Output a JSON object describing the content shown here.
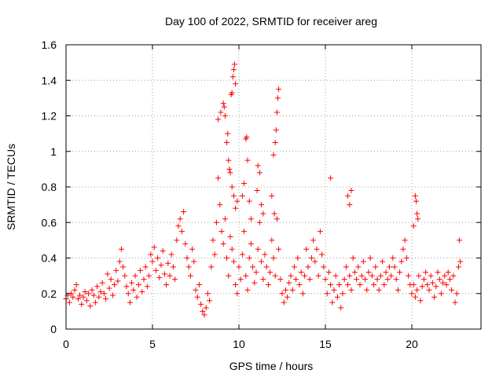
{
  "chart_data": {
    "type": "scatter",
    "title": "Day 100 of 2022, SRMTID for receiver areg",
    "xlabel": "GPS time / hours",
    "ylabel": "SRMTID / TECUs",
    "xlim": [
      0,
      24
    ],
    "ylim": [
      0,
      1.6
    ],
    "xticks": [
      0,
      5,
      10,
      15,
      20
    ],
    "xtick_labels": [
      "0",
      "5",
      "10",
      "15",
      "20"
    ],
    "yticks": [
      0,
      0.2,
      0.4,
      0.6,
      0.8,
      1.0,
      1.2,
      1.4,
      1.6
    ],
    "ytick_labels": [
      "0",
      "0.2",
      "0.4",
      "0.6",
      "0.8",
      "1",
      "1.2",
      "1.4",
      "1.6"
    ],
    "grid": true,
    "marker": "+",
    "color": "#ff0000",
    "series": [
      {
        "name": "SRMTID",
        "points": [
          [
            0.0,
            0.17
          ],
          [
            0.1,
            0.19
          ],
          [
            0.2,
            0.15
          ],
          [
            0.3,
            0.2
          ],
          [
            0.4,
            0.18
          ],
          [
            0.5,
            0.22
          ],
          [
            0.6,
            0.25
          ],
          [
            0.7,
            0.17
          ],
          [
            0.8,
            0.19
          ],
          [
            0.9,
            0.14
          ],
          [
            1.0,
            0.18
          ],
          [
            1.1,
            0.21
          ],
          [
            1.2,
            0.16
          ],
          [
            1.3,
            0.2
          ],
          [
            1.4,
            0.13
          ],
          [
            1.5,
            0.22
          ],
          [
            1.6,
            0.19
          ],
          [
            1.7,
            0.15
          ],
          [
            1.8,
            0.24
          ],
          [
            1.9,
            0.18
          ],
          [
            2.0,
            0.21
          ],
          [
            2.1,
            0.26
          ],
          [
            2.2,
            0.2
          ],
          [
            2.3,
            0.17
          ],
          [
            2.4,
            0.31
          ],
          [
            2.5,
            0.23
          ],
          [
            2.6,
            0.28
          ],
          [
            2.7,
            0.19
          ],
          [
            2.8,
            0.25
          ],
          [
            2.9,
            0.33
          ],
          [
            3.0,
            0.27
          ],
          [
            3.1,
            0.38
          ],
          [
            3.2,
            0.45
          ],
          [
            3.3,
            0.35
          ],
          [
            3.4,
            0.3
          ],
          [
            3.5,
            0.24
          ],
          [
            3.6,
            0.2
          ],
          [
            3.7,
            0.15
          ],
          [
            3.8,
            0.26
          ],
          [
            3.9,
            0.22
          ],
          [
            4.0,
            0.3
          ],
          [
            4.1,
            0.18
          ],
          [
            4.2,
            0.25
          ],
          [
            4.3,
            0.33
          ],
          [
            4.4,
            0.21
          ],
          [
            4.5,
            0.28
          ],
          [
            4.6,
            0.35
          ],
          [
            4.7,
            0.24
          ],
          [
            4.8,
            0.3
          ],
          [
            4.9,
            0.42
          ],
          [
            5.0,
            0.38
          ],
          [
            5.1,
            0.46
          ],
          [
            5.2,
            0.33
          ],
          [
            5.3,
            0.4
          ],
          [
            5.4,
            0.29
          ],
          [
            5.5,
            0.36
          ],
          [
            5.6,
            0.44
          ],
          [
            5.7,
            0.31
          ],
          [
            5.8,
            0.25
          ],
          [
            5.9,
            0.37
          ],
          [
            6.0,
            0.3
          ],
          [
            6.1,
            0.42
          ],
          [
            6.2,
            0.35
          ],
          [
            6.3,
            0.28
          ],
          [
            6.4,
            0.5
          ],
          [
            6.5,
            0.58
          ],
          [
            6.6,
            0.62
          ],
          [
            6.7,
            0.55
          ],
          [
            6.8,
            0.66
          ],
          [
            6.9,
            0.48
          ],
          [
            7.0,
            0.4
          ],
          [
            7.1,
            0.35
          ],
          [
            7.2,
            0.3
          ],
          [
            7.3,
            0.45
          ],
          [
            7.4,
            0.38
          ],
          [
            7.5,
            0.22
          ],
          [
            7.6,
            0.18
          ],
          [
            7.7,
            0.25
          ],
          [
            7.8,
            0.14
          ],
          [
            7.9,
            0.1
          ],
          [
            8.0,
            0.08
          ],
          [
            8.1,
            0.12
          ],
          [
            8.2,
            0.2
          ],
          [
            8.3,
            0.16
          ],
          [
            8.4,
            0.35
          ],
          [
            8.5,
            0.5
          ],
          [
            8.6,
            0.42
          ],
          [
            8.7,
            0.6
          ],
          [
            8.8,
            0.85
          ],
          [
            8.9,
            0.7
          ],
          [
            9.0,
            0.55
          ],
          [
            9.1,
            0.48
          ],
          [
            9.2,
            0.62
          ],
          [
            9.3,
            0.4
          ],
          [
            9.4,
            0.3
          ],
          [
            9.5,
            0.52
          ],
          [
            9.6,
            0.45
          ],
          [
            9.7,
            0.38
          ],
          [
            9.8,
            0.25
          ],
          [
            9.9,
            0.2
          ],
          [
            10.0,
            0.35
          ],
          [
            10.1,
            0.28
          ],
          [
            10.2,
            0.42
          ],
          [
            10.3,
            0.55
          ],
          [
            10.4,
            0.3
          ],
          [
            10.5,
            0.22
          ],
          [
            10.6,
            0.4
          ],
          [
            10.7,
            0.48
          ],
          [
            10.8,
            0.35
          ],
          [
            10.9,
            0.26
          ],
          [
            11.0,
            0.32
          ],
          [
            11.1,
            0.45
          ],
          [
            11.2,
            0.6
          ],
          [
            11.3,
            0.38
          ],
          [
            11.4,
            0.28
          ],
          [
            11.5,
            0.42
          ],
          [
            11.6,
            0.35
          ],
          [
            11.7,
            0.25
          ],
          [
            11.8,
            0.32
          ],
          [
            11.9,
            0.5
          ],
          [
            12.0,
            0.4
          ],
          [
            12.1,
            0.3
          ],
          [
            12.2,
            0.62
          ],
          [
            12.3,
            0.45
          ],
          [
            12.4,
            0.28
          ],
          [
            12.5,
            0.2
          ],
          [
            12.6,
            0.15
          ],
          [
            12.7,
            0.22
          ],
          [
            12.8,
            0.18
          ],
          [
            12.9,
            0.26
          ],
          [
            13.0,
            0.3
          ],
          [
            13.1,
            0.22
          ],
          [
            13.2,
            0.35
          ],
          [
            13.3,
            0.28
          ],
          [
            13.4,
            0.4
          ],
          [
            13.5,
            0.25
          ],
          [
            13.6,
            0.32
          ],
          [
            13.7,
            0.2
          ],
          [
            13.8,
            0.3
          ],
          [
            13.9,
            0.45
          ],
          [
            14.0,
            0.35
          ],
          [
            14.1,
            0.28
          ],
          [
            14.2,
            0.4
          ],
          [
            14.3,
            0.5
          ],
          [
            14.4,
            0.38
          ],
          [
            14.5,
            0.45
          ],
          [
            14.6,
            0.3
          ],
          [
            14.7,
            0.55
          ],
          [
            14.8,
            0.42
          ],
          [
            14.9,
            0.35
          ],
          [
            15.0,
            0.28
          ],
          [
            15.1,
            0.2
          ],
          [
            15.2,
            0.32
          ],
          [
            15.3,
            0.25
          ],
          [
            15.4,
            0.15
          ],
          [
            15.5,
            0.22
          ],
          [
            15.6,
            0.3
          ],
          [
            15.7,
            0.18
          ],
          [
            15.8,
            0.25
          ],
          [
            15.9,
            0.12
          ],
          [
            16.0,
            0.2
          ],
          [
            16.1,
            0.28
          ],
          [
            16.2,
            0.35
          ],
          [
            16.3,
            0.25
          ],
          [
            16.4,
            0.3
          ],
          [
            16.5,
            0.22
          ],
          [
            16.6,
            0.4
          ],
          [
            16.7,
            0.32
          ],
          [
            16.8,
            0.28
          ],
          [
            16.9,
            0.35
          ],
          [
            17.0,
            0.25
          ],
          [
            17.1,
            0.3
          ],
          [
            17.2,
            0.38
          ],
          [
            17.3,
            0.28
          ],
          [
            17.4,
            0.22
          ],
          [
            17.5,
            0.32
          ],
          [
            17.6,
            0.4
          ],
          [
            17.7,
            0.3
          ],
          [
            17.8,
            0.25
          ],
          [
            17.9,
            0.35
          ],
          [
            18.0,
            0.28
          ],
          [
            18.1,
            0.22
          ],
          [
            18.2,
            0.3
          ],
          [
            18.3,
            0.38
          ],
          [
            18.4,
            0.25
          ],
          [
            18.5,
            0.32
          ],
          [
            18.6,
            0.28
          ],
          [
            18.7,
            0.35
          ],
          [
            18.8,
            0.3
          ],
          [
            18.9,
            0.4
          ],
          [
            19.0,
            0.35
          ],
          [
            19.1,
            0.28
          ],
          [
            19.2,
            0.22
          ],
          [
            19.3,
            0.32
          ],
          [
            19.4,
            0.38
          ],
          [
            19.5,
            0.45
          ],
          [
            19.6,
            0.5
          ],
          [
            19.7,
            0.4
          ],
          [
            19.8,
            0.3
          ],
          [
            19.9,
            0.25
          ],
          [
            20.0,
            0.2
          ],
          [
            20.1,
            0.25
          ],
          [
            20.2,
            0.18
          ],
          [
            20.3,
            0.22
          ],
          [
            20.4,
            0.3
          ],
          [
            20.5,
            0.16
          ],
          [
            20.6,
            0.24
          ],
          [
            20.7,
            0.28
          ],
          [
            20.8,
            0.32
          ],
          [
            20.9,
            0.25
          ],
          [
            21.0,
            0.22
          ],
          [
            21.1,
            0.3
          ],
          [
            21.2,
            0.26
          ],
          [
            21.3,
            0.18
          ],
          [
            21.4,
            0.24
          ],
          [
            21.5,
            0.32
          ],
          [
            21.6,
            0.28
          ],
          [
            21.7,
            0.2
          ],
          [
            21.8,
            0.26
          ],
          [
            21.9,
            0.3
          ],
          [
            22.0,
            0.25
          ],
          [
            22.1,
            0.32
          ],
          [
            22.2,
            0.28
          ],
          [
            22.3,
            0.22
          ],
          [
            22.4,
            0.3
          ],
          [
            22.5,
            0.15
          ],
          [
            22.6,
            0.2
          ],
          [
            22.7,
            0.35
          ],
          [
            22.8,
            0.38
          ],
          [
            22.75,
            0.5
          ],
          [
            8.8,
            1.18
          ],
          [
            8.95,
            1.22
          ],
          [
            9.1,
            1.27
          ],
          [
            9.15,
            1.25
          ],
          [
            9.2,
            1.2
          ],
          [
            9.3,
            1.05
          ],
          [
            9.35,
            1.1
          ],
          [
            9.4,
            0.95
          ],
          [
            9.45,
            0.9
          ],
          [
            9.5,
            0.88
          ],
          [
            9.55,
            1.32
          ],
          [
            9.6,
            1.33
          ],
          [
            9.65,
            1.42
          ],
          [
            9.7,
            1.46
          ],
          [
            9.75,
            1.49
          ],
          [
            9.8,
            1.38
          ],
          [
            9.7,
            0.75
          ],
          [
            9.8,
            0.68
          ],
          [
            9.9,
            0.72
          ],
          [
            9.6,
            0.8
          ],
          [
            10.4,
            1.07
          ],
          [
            10.45,
            1.08
          ],
          [
            10.5,
            0.95
          ],
          [
            10.3,
            0.82
          ],
          [
            10.6,
            0.72
          ],
          [
            10.7,
            0.62
          ],
          [
            10.2,
            0.75
          ],
          [
            11.05,
            0.78
          ],
          [
            11.1,
            0.92
          ],
          [
            11.2,
            0.88
          ],
          [
            11.3,
            0.7
          ],
          [
            11.4,
            0.65
          ],
          [
            12.1,
            1.05
          ],
          [
            12.15,
            1.12
          ],
          [
            12.2,
            1.22
          ],
          [
            12.25,
            1.3
          ],
          [
            12.3,
            1.35
          ],
          [
            12.0,
            0.98
          ],
          [
            12.05,
            0.65
          ],
          [
            11.9,
            0.75
          ],
          [
            15.3,
            0.85
          ],
          [
            16.3,
            0.75
          ],
          [
            16.5,
            0.78
          ],
          [
            16.4,
            0.7
          ],
          [
            20.2,
            0.75
          ],
          [
            20.25,
            0.72
          ],
          [
            20.3,
            0.65
          ],
          [
            20.1,
            0.58
          ],
          [
            20.35,
            0.62
          ]
        ]
      }
    ]
  }
}
